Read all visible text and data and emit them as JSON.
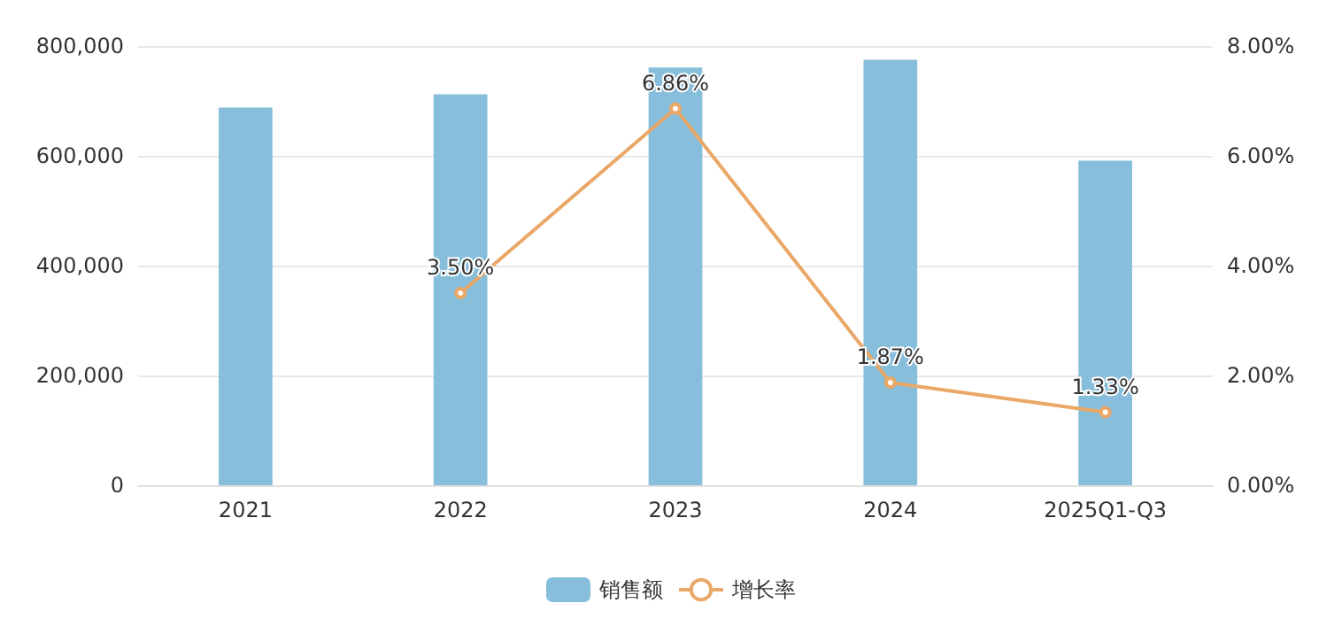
{
  "chart_data": {
    "type": "bar",
    "categories": [
      "2021",
      "2022",
      "2023",
      "2024",
      "2025Q1-Q3"
    ],
    "series": [
      {
        "name": "销售额",
        "color": "#86bedb",
        "values": [
          688000,
          712000,
          761000,
          775000,
          591000
        ]
      },
      {
        "name": "增长率",
        "type": "line",
        "axis": "y2",
        "color": "#e9a867",
        "values": [
          null,
          3.5,
          6.86,
          1.87,
          1.33
        ],
        "value_labels": [
          null,
          "3.50%",
          "6.86%",
          "1.87%",
          "1.33%"
        ]
      }
    ],
    "ylim": [
      0,
      800000
    ],
    "yticks": [
      {
        "value": 0,
        "label": "0"
      },
      {
        "value": 200000,
        "label": "200,000"
      },
      {
        "value": 400000,
        "label": "400,000"
      },
      {
        "value": 600000,
        "label": "600,000"
      },
      {
        "value": 800000,
        "label": "800,000"
      }
    ],
    "y2lim": [
      0,
      8
    ],
    "y2ticks": [
      {
        "value": 0,
        "label": "0.00%"
      },
      {
        "value": 2,
        "label": "2.00%"
      },
      {
        "value": 4,
        "label": "4.00%"
      },
      {
        "value": 6,
        "label": "6.00%"
      },
      {
        "value": 8,
        "label": "8.00%"
      }
    ],
    "grid": "y",
    "legend": "bottom",
    "marker": "circle",
    "line_style": "solid"
  }
}
